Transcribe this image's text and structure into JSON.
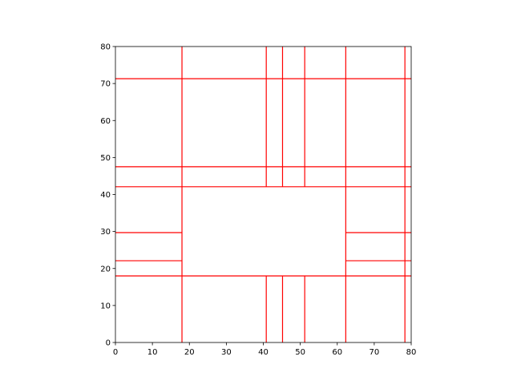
{
  "chart_data": {
    "type": "line",
    "title": "",
    "xlabel": "",
    "ylabel": "",
    "xlim": [
      0,
      80
    ],
    "ylim": [
      0,
      80
    ],
    "xticks": [
      0,
      10,
      20,
      30,
      40,
      50,
      60,
      70,
      80
    ],
    "yticks": [
      0,
      10,
      20,
      30,
      40,
      50,
      60,
      70,
      80
    ],
    "grid": false,
    "color": "#ff0000",
    "segments": [
      {
        "x": [
          0,
          80
        ],
        "y": [
          71.3,
          71.3
        ]
      },
      {
        "x": [
          0,
          80
        ],
        "y": [
          47.5,
          47.5
        ]
      },
      {
        "x": [
          0,
          80
        ],
        "y": [
          42.1,
          42.1
        ]
      },
      {
        "x": [
          0,
          80
        ],
        "y": [
          18.0,
          18.0
        ]
      },
      {
        "x": [
          0,
          18.0
        ],
        "y": [
          29.7,
          29.7
        ]
      },
      {
        "x": [
          0,
          18.0
        ],
        "y": [
          22.1,
          22.1
        ]
      },
      {
        "x": [
          62.3,
          80
        ],
        "y": [
          29.7,
          29.7
        ]
      },
      {
        "x": [
          62.3,
          80
        ],
        "y": [
          22.1,
          22.1
        ]
      },
      {
        "x": [
          18.0,
          18.0
        ],
        "y": [
          0,
          80
        ]
      },
      {
        "x": [
          62.3,
          62.3
        ],
        "y": [
          0,
          80
        ]
      },
      {
        "x": [
          78.3,
          78.3
        ],
        "y": [
          0,
          80
        ]
      },
      {
        "x": [
          40.8,
          40.8
        ],
        "y": [
          42.1,
          80
        ]
      },
      {
        "x": [
          45.2,
          45.2
        ],
        "y": [
          42.1,
          80
        ]
      },
      {
        "x": [
          51.2,
          51.2
        ],
        "y": [
          42.1,
          80
        ]
      },
      {
        "x": [
          40.8,
          40.8
        ],
        "y": [
          0,
          18.0
        ]
      },
      {
        "x": [
          45.2,
          45.2
        ],
        "y": [
          0,
          18.0
        ]
      },
      {
        "x": [
          51.2,
          51.2
        ],
        "y": [
          0,
          18.0
        ]
      }
    ]
  }
}
